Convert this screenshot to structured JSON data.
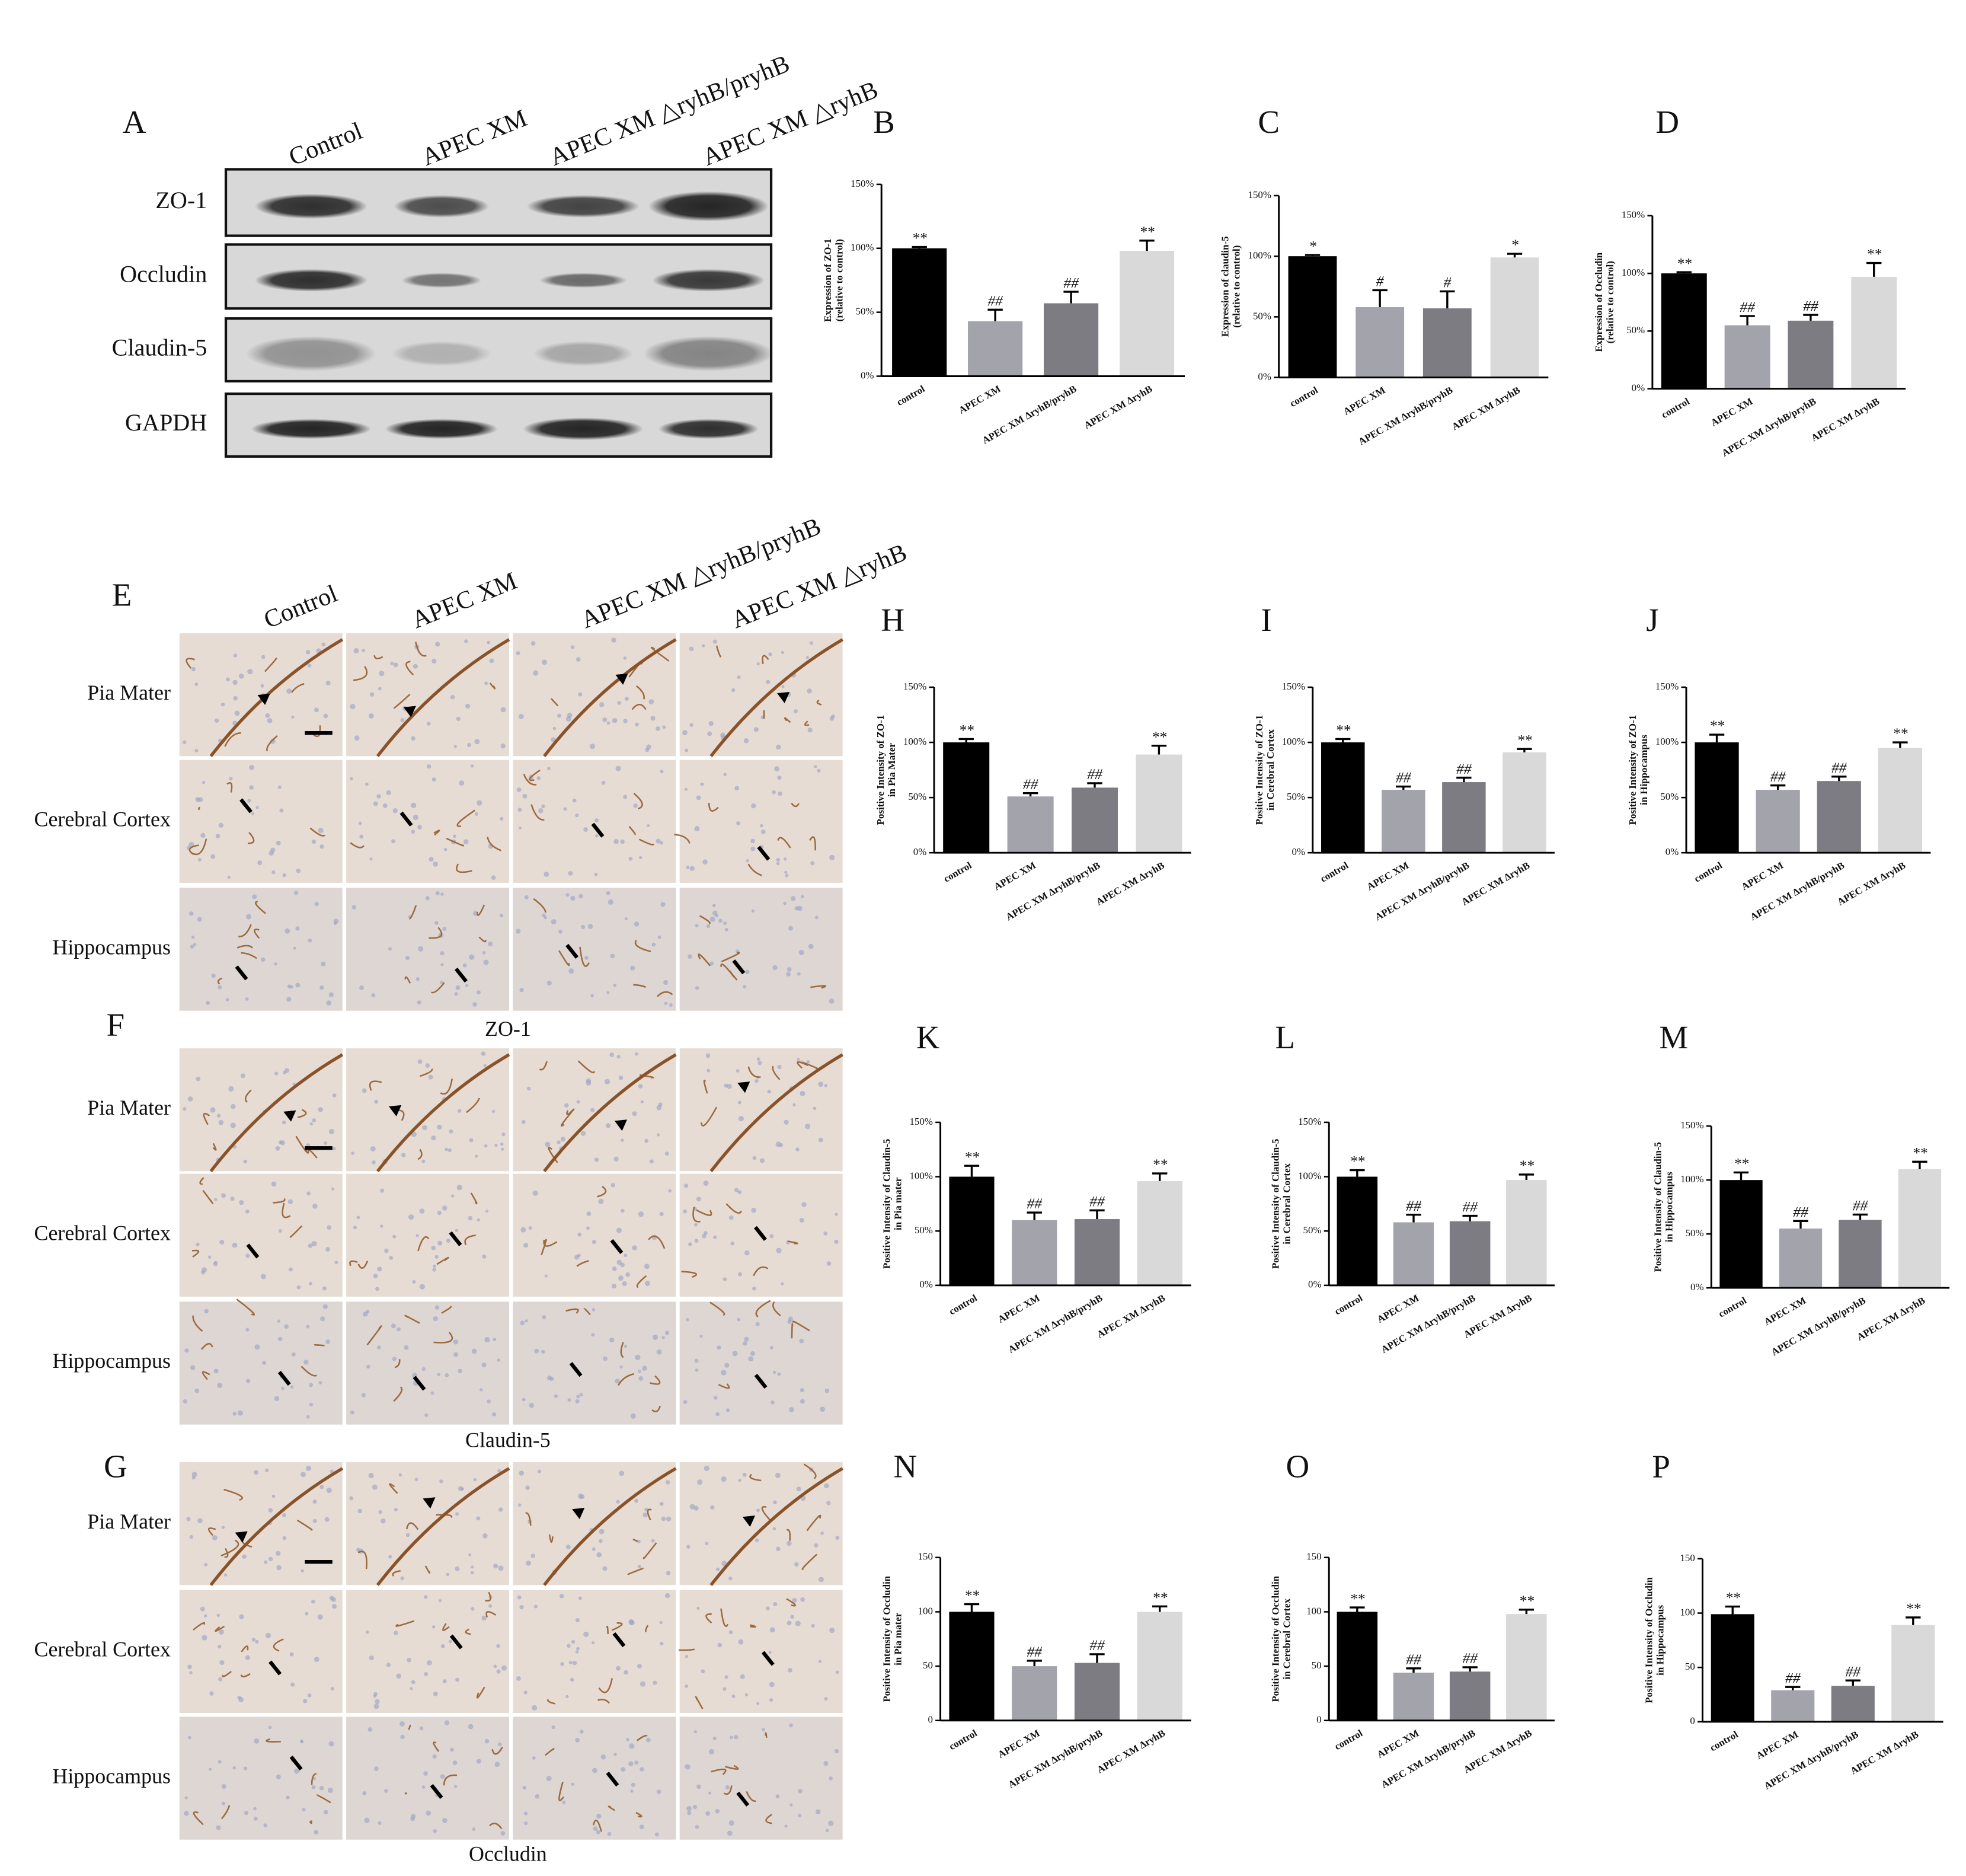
{
  "blot": {
    "label": "A",
    "lanes": [
      "Control",
      "APEC XM",
      "APEC XM △ryhB/pryhB",
      "APEC XM △ryhB"
    ],
    "proteins": [
      "ZO-1",
      "Occludin",
      "Claudin-5",
      "GAPDH"
    ]
  },
  "histology": {
    "rows": [
      "Pia Mater",
      "Cerebral Cortex",
      "Hippocampus"
    ],
    "panels": [
      {
        "label": "E",
        "caption": "ZO-1"
      },
      {
        "label": "F",
        "caption": "Claudin-5"
      },
      {
        "label": "G",
        "caption": "Occludin"
      }
    ]
  },
  "chart_data": [
    {
      "type": "bar",
      "label": "B",
      "y_label": [
        "Expression of ZO-1",
        "(relative to control)"
      ],
      "categories": [
        "control",
        "APEC XM",
        "APEC XM ∆ryhB/pryhB",
        "APEC XM ∆ryhB"
      ],
      "values": [
        100,
        43,
        57,
        98
      ],
      "errors": [
        1,
        9,
        9,
        8
      ],
      "annotations": [
        "**",
        "##",
        "##",
        "**"
      ],
      "colors": [
        "#000000",
        "#a3a3ab",
        "#7c7c82",
        "#d9d9d9"
      ],
      "ylim": [
        0,
        150
      ],
      "yticks": [
        {
          "value": 0,
          "label": "0%"
        },
        {
          "value": 50,
          "label": "50%"
        },
        {
          "value": 100,
          "label": "100%"
        },
        {
          "value": 150,
          "label": "150%"
        }
      ]
    },
    {
      "type": "bar",
      "label": "C",
      "y_label": [
        "Expression of claudin-5",
        "(relative to control)"
      ],
      "categories": [
        "control",
        "APEC XM",
        "APEC XM ∆ryhB/pryhB",
        "APEC XM ∆ryhB"
      ],
      "values": [
        100,
        58,
        57,
        99
      ],
      "errors": [
        1,
        14,
        14,
        3
      ],
      "annotations": [
        "*",
        "#",
        "#",
        "*"
      ],
      "colors": [
        "#000000",
        "#a3a3ab",
        "#7c7c82",
        "#d9d9d9"
      ],
      "ylim": [
        0,
        150
      ],
      "yticks": [
        {
          "value": 0,
          "label": "0%"
        },
        {
          "value": 50,
          "label": "50%"
        },
        {
          "value": 100,
          "label": "100%"
        },
        {
          "value": 150,
          "label": "150%"
        }
      ]
    },
    {
      "type": "bar",
      "label": "D",
      "y_label": [
        "Expression of Occludin",
        "(relative to control)"
      ],
      "categories": [
        "control",
        "APEC XM",
        "APEC XM ∆ryhB/pryhB",
        "APEC XM ∆ryhB"
      ],
      "values": [
        100,
        55,
        59,
        97
      ],
      "errors": [
        1,
        8,
        5,
        12
      ],
      "annotations": [
        "**",
        "##",
        "##",
        "**"
      ],
      "colors": [
        "#000000",
        "#a3a3ab",
        "#7c7c82",
        "#d9d9d9"
      ],
      "ylim": [
        0,
        150
      ],
      "yticks": [
        {
          "value": 0,
          "label": "0%"
        },
        {
          "value": 50,
          "label": "50%"
        },
        {
          "value": 100,
          "label": "100%"
        },
        {
          "value": 150,
          "label": "150%"
        }
      ]
    },
    {
      "type": "bar",
      "label": "H",
      "y_label": [
        "Positive Intensity of ZO-1",
        "in Pia Mater"
      ],
      "categories": [
        "control",
        "APEC XM",
        "APEC XM ∆ryhB/pryhB",
        "APEC XM ∆ryhB"
      ],
      "values": [
        100,
        51,
        59,
        89
      ],
      "errors": [
        3,
        3,
        4,
        8
      ],
      "annotations": [
        "**",
        "##",
        "##",
        "**"
      ],
      "colors": [
        "#000000",
        "#a3a3ab",
        "#7c7c82",
        "#d9d9d9"
      ],
      "ylim": [
        0,
        150
      ],
      "yticks": [
        {
          "value": 0,
          "label": "0%"
        },
        {
          "value": 50,
          "label": "50%"
        },
        {
          "value": 100,
          "label": "100%"
        },
        {
          "value": 150,
          "label": "150%"
        }
      ]
    },
    {
      "type": "bar",
      "label": "I",
      "y_label": [
        "Positive Intensity of ZO-1",
        "in Cerebral Cortex"
      ],
      "categories": [
        "control",
        "APEC XM",
        "APEC XM ∆ryhB/pryhB",
        "APEC XM ∆ryhB"
      ],
      "values": [
        100,
        57,
        64,
        91
      ],
      "errors": [
        3,
        3,
        4,
        3
      ],
      "annotations": [
        "**",
        "##",
        "##",
        "**"
      ],
      "colors": [
        "#000000",
        "#a3a3ab",
        "#7c7c82",
        "#d9d9d9"
      ],
      "ylim": [
        0,
        150
      ],
      "yticks": [
        {
          "value": 0,
          "label": "0%"
        },
        {
          "value": 50,
          "label": "50%"
        },
        {
          "value": 100,
          "label": "100%"
        },
        {
          "value": 150,
          "label": "150%"
        }
      ]
    },
    {
      "type": "bar",
      "label": "J",
      "y_label": [
        "Positive Intensity of ZO-1",
        "in Hippocampus"
      ],
      "categories": [
        "control",
        "APEC XM",
        "APEC XM ∆ryhB/pryhB",
        "APEC XM ∆ryhB"
      ],
      "values": [
        100,
        57,
        65,
        95
      ],
      "errors": [
        7,
        4,
        4,
        5
      ],
      "annotations": [
        "**",
        "##",
        "##",
        "**"
      ],
      "colors": [
        "#000000",
        "#a3a3ab",
        "#7c7c82",
        "#d9d9d9"
      ],
      "ylim": [
        0,
        150
      ],
      "yticks": [
        {
          "value": 0,
          "label": "0%"
        },
        {
          "value": 50,
          "label": "50%"
        },
        {
          "value": 100,
          "label": "100%"
        },
        {
          "value": 150,
          "label": "150%"
        }
      ]
    },
    {
      "type": "bar",
      "label": "K",
      "y_label": [
        "Positive Intensity of Claudin-5",
        "in Pia mater"
      ],
      "categories": [
        "control",
        "APEC XM",
        "APEC XM ∆ryhB/pryhB",
        "APEC XM ∆ryhB"
      ],
      "values": [
        100,
        60,
        61,
        96
      ],
      "errors": [
        10,
        7,
        8,
        7
      ],
      "annotations": [
        "**",
        "##",
        "##",
        "**"
      ],
      "colors": [
        "#000000",
        "#a3a3ab",
        "#7c7c82",
        "#d9d9d9"
      ],
      "ylim": [
        0,
        150
      ],
      "yticks": [
        {
          "value": 0,
          "label": "0%"
        },
        {
          "value": 50,
          "label": "50%"
        },
        {
          "value": 100,
          "label": "100%"
        },
        {
          "value": 150,
          "label": "150%"
        }
      ]
    },
    {
      "type": "bar",
      "label": "L",
      "y_label": [
        "Positive Intensity of Claudin-5",
        "in Cerebral Cortex"
      ],
      "categories": [
        "control",
        "APEC XM",
        "APEC XM ∆ryhB/pryhB",
        "APEC XM ∆ryhB"
      ],
      "values": [
        100,
        58,
        59,
        97
      ],
      "errors": [
        6,
        7,
        5,
        5
      ],
      "annotations": [
        "**",
        "##",
        "##",
        "**"
      ],
      "colors": [
        "#000000",
        "#a3a3ab",
        "#7c7c82",
        "#d9d9d9"
      ],
      "ylim": [
        0,
        150
      ],
      "yticks": [
        {
          "value": 0,
          "label": "0%"
        },
        {
          "value": 50,
          "label": "50%"
        },
        {
          "value": 100,
          "label": "100%"
        },
        {
          "value": 150,
          "label": "150%"
        }
      ]
    },
    {
      "type": "bar",
      "label": "M",
      "y_label": [
        "Positive Intensity of Claudin-5",
        "in Hippocampus"
      ],
      "categories": [
        "control",
        "APEC XM",
        "APEC XM ∆ryhB/pryhB",
        "APEC XM ∆ryhB"
      ],
      "values": [
        100,
        55,
        63,
        110
      ],
      "errors": [
        7,
        7,
        5,
        7
      ],
      "annotations": [
        "**",
        "##",
        "##",
        "**"
      ],
      "colors": [
        "#000000",
        "#a3a3ab",
        "#7c7c82",
        "#d9d9d9"
      ],
      "ylim": [
        0,
        150
      ],
      "yticks": [
        {
          "value": 0,
          "label": "0%"
        },
        {
          "value": 50,
          "label": "50%"
        },
        {
          "value": 100,
          "label": "100%"
        },
        {
          "value": 150,
          "label": "150%"
        }
      ]
    },
    {
      "type": "bar",
      "label": "N",
      "y_label": [
        "Positive Intensity of Occludin",
        "in Pia mater"
      ],
      "categories": [
        "control",
        "APEC XM",
        "APEC XM ∆ryhB/pryhB",
        "APEC XM ∆ryhB"
      ],
      "values": [
        100,
        50,
        53,
        100
      ],
      "errors": [
        7,
        5,
        8,
        5
      ],
      "annotations": [
        "**",
        "##",
        "##",
        "**"
      ],
      "colors": [
        "#000000",
        "#a3a3ab",
        "#7c7c82",
        "#d9d9d9"
      ],
      "ylim": [
        0,
        150
      ],
      "yticks": [
        0,
        50,
        100,
        150
      ]
    },
    {
      "type": "bar",
      "label": "O",
      "y_label": [
        "Positive Intensity of Occludin",
        "in Cerebral Cortex"
      ],
      "categories": [
        "control",
        "APEC XM",
        "APEC XM ∆ryhB/pryhB",
        "APEC XM ∆ryhB"
      ],
      "values": [
        100,
        44,
        45,
        98
      ],
      "errors": [
        4,
        4,
        4,
        4
      ],
      "annotations": [
        "**",
        "##",
        "##",
        "**"
      ],
      "colors": [
        "#000000",
        "#a3a3ab",
        "#7c7c82",
        "#d9d9d9"
      ],
      "ylim": [
        0,
        150
      ],
      "yticks": [
        0,
        50,
        100,
        150
      ]
    },
    {
      "type": "bar",
      "label": "P",
      "y_label": [
        "Positive Intensity of Occludin",
        "in Hippocampus"
      ],
      "categories": [
        "control",
        "APEC XM",
        "APEC XM ∆ryhB/pryhB",
        "APEC XM ∆ryhB"
      ],
      "values": [
        99,
        29,
        33,
        89
      ],
      "errors": [
        7,
        3,
        5,
        7
      ],
      "annotations": [
        "**",
        "##",
        "##",
        "**"
      ],
      "colors": [
        "#000000",
        "#a3a3ab",
        "#7c7c82",
        "#d9d9d9"
      ],
      "ylim": [
        0,
        150
      ],
      "yticks": [
        0,
        50,
        100,
        150
      ]
    }
  ]
}
